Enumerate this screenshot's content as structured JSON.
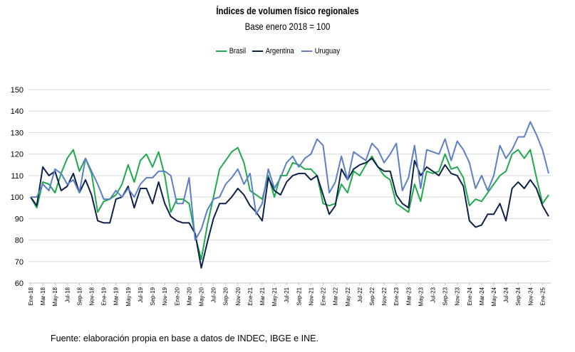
{
  "title": "Índices de volumen físico regionales",
  "subtitle": "Base enero 2018 = 100",
  "source": "Fuente: elaboración propia en base a datos de INDEC, IBGE e INE.",
  "chart_data": {
    "type": "line",
    "title": "Índices de volumen físico regionales",
    "subtitle": "Base enero 2018 = 100",
    "ylim": [
      60,
      150
    ],
    "yticks": [
      60,
      70,
      80,
      90,
      100,
      110,
      120,
      130,
      140,
      150
    ],
    "grid": true,
    "legend_position": "top-center",
    "tick_labels": [
      "Ene-18",
      "Mar-18",
      "May-18",
      "Jul-18",
      "Sep-18",
      "Nov-18",
      "Ene-19",
      "Mar-19",
      "May-19",
      "Jul-19",
      "Sep-19",
      "Nov-19",
      "Ene-20",
      "Mar-20",
      "May-20",
      "Jul-20",
      "Sep-20",
      "Nov-20",
      "Ene-21",
      "Mar-21",
      "May-21",
      "Jul-21",
      "Sep-21",
      "Nov-21",
      "Ene-22",
      "Mar-22",
      "May-22",
      "Jul-22",
      "Sep-22",
      "Nov-22",
      "Ene-23",
      "Mar-23",
      "May-23",
      "Jul-23",
      "Sep-23",
      "Nov-23",
      "Ene-24",
      "Mar-24",
      "May-24",
      "Jul-24",
      "Sep-24",
      "Nov-24",
      "Ene-25"
    ],
    "x": [
      "Ene-18",
      "Feb-18",
      "Mar-18",
      "Abr-18",
      "May-18",
      "Jun-18",
      "Jul-18",
      "Ago-18",
      "Sep-18",
      "Oct-18",
      "Nov-18",
      "Dic-18",
      "Ene-19",
      "Feb-19",
      "Mar-19",
      "Abr-19",
      "May-19",
      "Jun-19",
      "Jul-19",
      "Ago-19",
      "Sep-19",
      "Oct-19",
      "Nov-19",
      "Dic-19",
      "Ene-20",
      "Feb-20",
      "Mar-20",
      "Abr-20",
      "May-20",
      "Jun-20",
      "Jul-20",
      "Ago-20",
      "Sep-20",
      "Oct-20",
      "Nov-20",
      "Dic-20",
      "Ene-21",
      "Feb-21",
      "Mar-21",
      "Abr-21",
      "May-21",
      "Jun-21",
      "Jul-21",
      "Ago-21",
      "Sep-21",
      "Oct-21",
      "Nov-21",
      "Dic-21",
      "Ene-22",
      "Feb-22",
      "Mar-22",
      "Abr-22",
      "May-22",
      "Jun-22",
      "Jul-22",
      "Ago-22",
      "Sep-22",
      "Oct-22",
      "Nov-22",
      "Dic-22",
      "Ene-23",
      "Feb-23",
      "Mar-23",
      "Abr-23",
      "May-23",
      "Jun-23",
      "Jul-23",
      "Ago-23",
      "Sep-23",
      "Oct-23",
      "Nov-23",
      "Dic-23",
      "Ene-24",
      "Feb-24",
      "Mar-24",
      "Abr-24",
      "May-24",
      "Jun-24",
      "Jul-24",
      "Ago-24",
      "Sep-24",
      "Oct-24",
      "Nov-24",
      "Dic-24",
      "Ene-25",
      "Feb-25"
    ],
    "series": [
      {
        "name": "Brasil",
        "color": "#1faa4a",
        "values": [
          100,
          95,
          107,
          106,
          102,
          111,
          118,
          122,
          112,
          118,
          111,
          93,
          98,
          99,
          101,
          106,
          115,
          107,
          117,
          120,
          114,
          121,
          110,
          93,
          99,
          99,
          97,
          82,
          71,
          87,
          100,
          113,
          117,
          121,
          123,
          116,
          103,
          101,
          99,
          110,
          100,
          110,
          110,
          116,
          115,
          113,
          113,
          110,
          97,
          96,
          97,
          106,
          102,
          112,
          110,
          115,
          119,
          114,
          110,
          108,
          97,
          95,
          93,
          106,
          98,
          112,
          111,
          112,
          120,
          113,
          114,
          109,
          96,
          99,
          98,
          102,
          106,
          110,
          112,
          120,
          122,
          118,
          122,
          109,
          97,
          101
        ]
      },
      {
        "name": "Argentina",
        "color": "#0d2148",
        "values": [
          100,
          96,
          114,
          110,
          112,
          103,
          105,
          111,
          102,
          108,
          101,
          89,
          88,
          88,
          99,
          100,
          105,
          95,
          104,
          104,
          97,
          107,
          97,
          91,
          89,
          88,
          88,
          83,
          67,
          79,
          90,
          97,
          97,
          100,
          104,
          101,
          96,
          93,
          89,
          109,
          103,
          101,
          107,
          110,
          111,
          111,
          108,
          110,
          101,
          92,
          96,
          113,
          108,
          113,
          115,
          116,
          118,
          114,
          112,
          112,
          101,
          97,
          95,
          117,
          110,
          114,
          112,
          110,
          115,
          111,
          110,
          105,
          89,
          86,
          87,
          92,
          92,
          97,
          89,
          104,
          107,
          104,
          108,
          104,
          96,
          91
        ]
      },
      {
        "name": "Uruguay",
        "color": "#5b7fc7",
        "values": [
          100,
          100,
          106,
          103,
          113,
          111,
          106,
          108,
          102,
          118,
          112,
          106,
          99,
          99,
          103,
          100,
          104,
          100,
          106,
          109,
          109,
          112,
          112,
          110,
          97,
          97,
          109,
          80,
          85,
          94,
          99,
          100,
          106,
          109,
          113,
          106,
          111,
          92,
          97,
          113,
          104,
          109,
          116,
          119,
          114,
          118,
          120,
          127,
          124,
          102,
          107,
          119,
          108,
          121,
          119,
          117,
          125,
          122,
          116,
          120,
          125,
          103,
          109,
          124,
          104,
          122,
          121,
          120,
          127,
          117,
          126,
          122,
          116,
          104,
          110,
          103,
          110,
          124,
          118,
          122,
          128,
          128,
          135,
          129,
          122,
          111
        ]
      }
    ]
  }
}
